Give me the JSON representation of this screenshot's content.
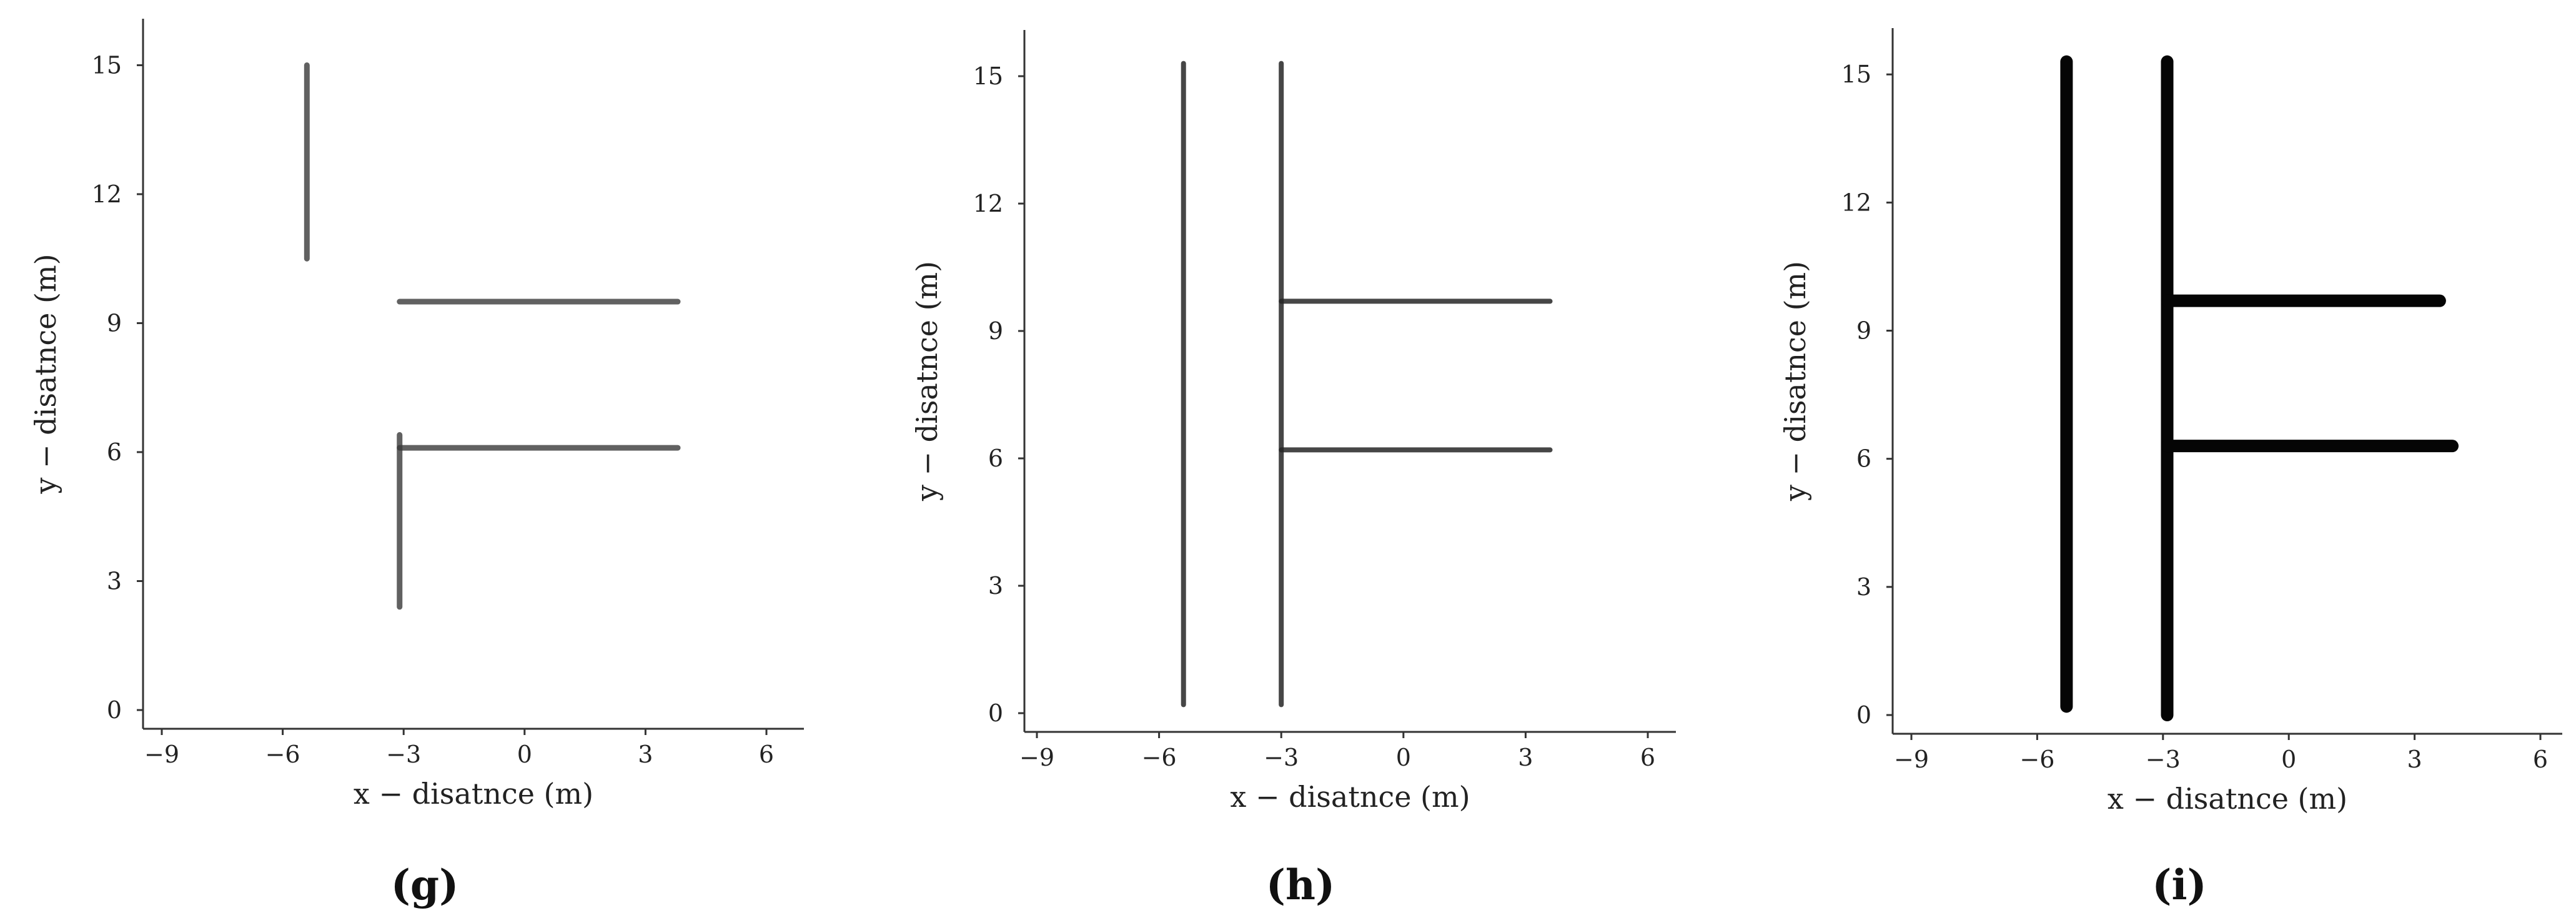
{
  "chart_data": [
    {
      "type": "line",
      "panel_label": "(g)",
      "xlabel": "x − disatnce (m)",
      "ylabel": "y − disatnce (m)",
      "xlim": [
        -9,
        6
      ],
      "ylim": [
        0,
        15.5
      ],
      "xticks": [
        "−9",
        "−6",
        "−3",
        "0",
        "3",
        "6"
      ],
      "yticks": [
        "0",
        "3",
        "6",
        "9",
        "12",
        "15"
      ],
      "grid": false,
      "color": "#3a3a3a",
      "style": "faint",
      "series": [
        {
          "x": [
            -5.4,
            -5.4
          ],
          "y": [
            10.5,
            15.0
          ]
        },
        {
          "x": [
            -3.1,
            3.8
          ],
          "y": [
            9.5,
            9.5
          ]
        },
        {
          "x": [
            -3.1,
            3.8
          ],
          "y": [
            6.1,
            6.1
          ]
        },
        {
          "x": [
            -3.1,
            -3.1
          ],
          "y": [
            2.4,
            6.4
          ]
        }
      ]
    },
    {
      "type": "line",
      "panel_label": "(h)",
      "xlabel": "x − disatnce (m)",
      "ylabel": "y − disatnce (m)",
      "xlim": [
        -9,
        6
      ],
      "ylim": [
        0,
        15.5
      ],
      "xticks": [
        "−9",
        "−6",
        "−3",
        "0",
        "3",
        "6"
      ],
      "yticks": [
        "0",
        "3",
        "6",
        "9",
        "12",
        "15"
      ],
      "grid": false,
      "color": "#262626",
      "style": "noisy",
      "series": [
        {
          "x": [
            -5.4,
            -5.4
          ],
          "y": [
            0.2,
            15.3
          ]
        },
        {
          "x": [
            -3.0,
            -3.0
          ],
          "y": [
            0.2,
            15.3
          ]
        },
        {
          "x": [
            -3.0,
            3.6
          ],
          "y": [
            9.7,
            9.7
          ]
        },
        {
          "x": [
            -3.0,
            3.6
          ],
          "y": [
            6.2,
            6.2
          ]
        }
      ]
    },
    {
      "type": "line",
      "panel_label": "(i)",
      "xlabel": "x − disatnce (m)",
      "ylabel": "y − disatnce (m)",
      "xlim": [
        -9,
        6
      ],
      "ylim": [
        0,
        15.5
      ],
      "xticks": [
        "−9",
        "−6",
        "−3",
        "0",
        "3",
        "6"
      ],
      "yticks": [
        "0",
        "3",
        "6",
        "9",
        "12",
        "15"
      ],
      "grid": false,
      "color": "#050505",
      "style": "solid",
      "series": [
        {
          "x": [
            -5.3,
            -5.3
          ],
          "y": [
            0.2,
            15.3
          ]
        },
        {
          "x": [
            -2.9,
            -2.9
          ],
          "y": [
            0.0,
            15.3
          ]
        },
        {
          "x": [
            -2.9,
            3.6
          ],
          "y": [
            9.7,
            9.7
          ]
        },
        {
          "x": [
            -2.9,
            3.9
          ],
          "y": [
            6.3,
            6.3
          ]
        }
      ]
    }
  ]
}
